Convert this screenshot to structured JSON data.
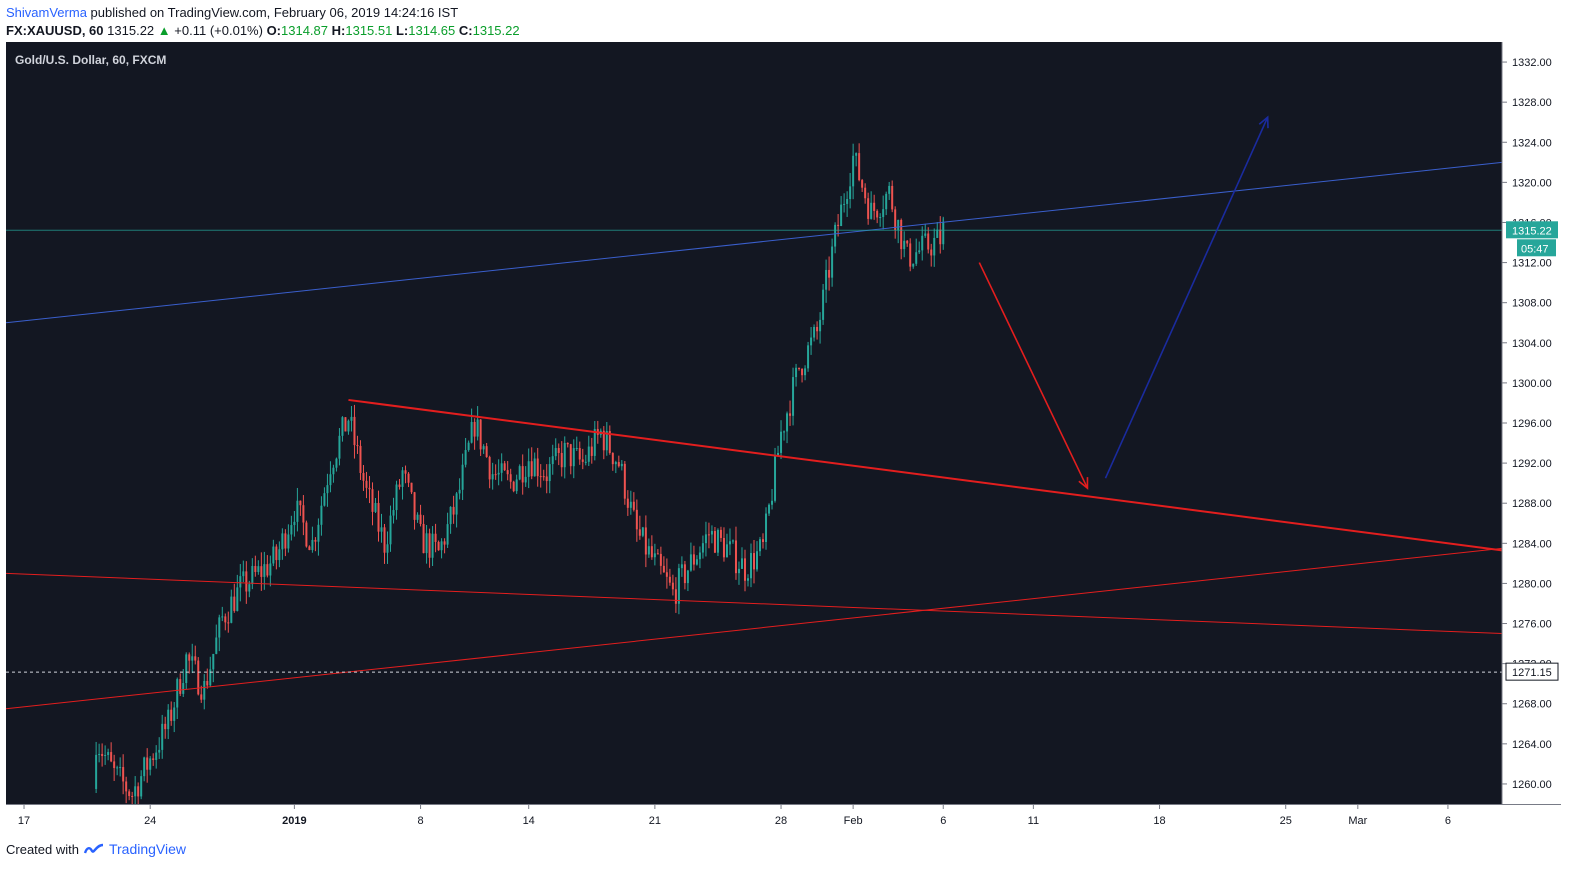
{
  "header": {
    "author": "ShivamVerma",
    "published_text": "published on TradingView.com, February 06, 2019 14:24:16 IST",
    "symbol": "FX:XAUUSD, 60",
    "last": "1315.22",
    "change_arrow": "▲",
    "change": "+0.11 (+0.01%)",
    "open_label": "O:",
    "open": "1314.87",
    "high_label": "H:",
    "high": "1315.51",
    "low_label": "L:",
    "low": "1314.65",
    "close_label": "C:",
    "close": "1315.22"
  },
  "footer": {
    "created_with": "Created with",
    "brand": "TradingView"
  },
  "colors": {
    "background": "#131722",
    "up_candle": "#26a69a",
    "down_candle": "#ef5350",
    "last_price": "#26a69a",
    "trend_blue": "#3a5fcd",
    "trend_red": "#e31e1e",
    "arrow_down": "#e31e1e",
    "arrow_up": "#1a2b9e"
  },
  "chart_data": {
    "type": "candlestick",
    "title": "Gold/U.S. Dollar, 60, FXCM",
    "ylim": [
      1258,
      1334
    ],
    "y_ticks": [
      "1260.00",
      "1264.00",
      "1268.00",
      "1272.00",
      "1276.00",
      "1280.00",
      "1284.00",
      "1288.00",
      "1292.00",
      "1296.00",
      "1300.00",
      "1304.00",
      "1308.00",
      "1312.00",
      "1316.00",
      "1320.00",
      "1324.00",
      "1328.00",
      "1332.00"
    ],
    "x_range": [
      "2018-12-16",
      "2019-03-09"
    ],
    "x_ticks": [
      {
        "date": "2018-12-17",
        "label": "17",
        "bold": false
      },
      {
        "date": "2018-12-24",
        "label": "24",
        "bold": false
      },
      {
        "date": "2019-01-01",
        "label": "2019",
        "bold": true
      },
      {
        "date": "2019-01-08",
        "label": "8",
        "bold": false
      },
      {
        "date": "2019-01-14",
        "label": "14",
        "bold": false
      },
      {
        "date": "2019-01-21",
        "label": "21",
        "bold": false
      },
      {
        "date": "2019-01-28",
        "label": "28",
        "bold": false
      },
      {
        "date": "2019-02-01",
        "label": "Feb",
        "bold": false
      },
      {
        "date": "2019-02-06",
        "label": "6",
        "bold": false
      },
      {
        "date": "2019-02-11",
        "label": "11",
        "bold": false
      },
      {
        "date": "2019-02-18",
        "label": "18",
        "bold": false
      },
      {
        "date": "2019-02-25",
        "label": "25",
        "bold": false
      },
      {
        "date": "2019-03-01",
        "label": "Mar",
        "bold": false
      },
      {
        "date": "2019-03-06",
        "label": "6",
        "bold": false
      }
    ],
    "price_path": [
      [
        "2018-12-21",
        1259.5
      ],
      [
        "2018-12-21",
        1264.5
      ],
      [
        "2018-12-22",
        1261.0
      ],
      [
        "2018-12-23",
        1259.0
      ],
      [
        "2018-12-24",
        1262.5
      ],
      [
        "2018-12-25",
        1266.0
      ],
      [
        "2018-12-26",
        1272.5
      ],
      [
        "2018-12-27",
        1269.5
      ],
      [
        "2018-12-28",
        1276.5
      ],
      [
        "2018-12-29",
        1279.5
      ],
      [
        "2018-12-31",
        1282.5
      ],
      [
        "2019-01-01",
        1287.5
      ],
      [
        "2019-01-02",
        1284.0
      ],
      [
        "2019-01-03",
        1292.0
      ],
      [
        "2019-01-04",
        1296.5
      ],
      [
        "2019-01-05",
        1289.0
      ],
      [
        "2019-01-06",
        1284.0
      ],
      [
        "2019-01-07",
        1291.0
      ],
      [
        "2019-01-08",
        1284.5
      ],
      [
        "2019-01-09",
        1283.0
      ],
      [
        "2019-01-10",
        1288.0
      ],
      [
        "2019-01-11",
        1296.0
      ],
      [
        "2019-01-12",
        1291.0
      ],
      [
        "2019-01-13",
        1290.0
      ],
      [
        "2019-01-14",
        1292.5
      ],
      [
        "2019-01-15",
        1291.0
      ],
      [
        "2019-01-16",
        1293.0
      ],
      [
        "2019-01-17",
        1292.0
      ],
      [
        "2019-01-18",
        1295.0
      ],
      [
        "2019-01-19",
        1292.0
      ],
      [
        "2019-01-20",
        1285.0
      ],
      [
        "2019-01-21",
        1282.0
      ],
      [
        "2019-01-22",
        1279.0
      ],
      [
        "2019-01-23",
        1282.0
      ],
      [
        "2019-01-24",
        1285.0
      ],
      [
        "2019-01-25",
        1283.5
      ],
      [
        "2019-01-26",
        1281.5
      ],
      [
        "2019-01-27",
        1283.5
      ],
      [
        "2019-01-28",
        1295.0
      ],
      [
        "2019-01-29",
        1301.5
      ],
      [
        "2019-01-30",
        1305.0
      ],
      [
        "2019-01-31",
        1314.5
      ],
      [
        "2019-02-01",
        1322.5
      ],
      [
        "2019-02-02",
        1317.0
      ],
      [
        "2019-02-03",
        1319.0
      ],
      [
        "2019-02-04",
        1312.5
      ],
      [
        "2019-02-05",
        1313.5
      ],
      [
        "2019-02-06",
        1314.5
      ],
      [
        "2019-02-06",
        1315.2
      ]
    ],
    "drawings": {
      "blue_trendline": [
        [
          "2018-12-16",
          1306.0
        ],
        [
          "2019-03-09",
          1322.0
        ]
      ],
      "red_triangle_top": [
        [
          "2019-01-04",
          1298.3
        ],
        [
          "2019-03-09",
          1283.3
        ]
      ],
      "red_lower_rising": [
        [
          "2018-12-16",
          1267.5
        ],
        [
          "2019-03-09",
          1283.5
        ]
      ],
      "red_lower_falling": [
        [
          "2018-12-16",
          1281.0
        ],
        [
          "2019-03-09",
          1275.0
        ]
      ],
      "down_arrow": [
        [
          "2019-02-08",
          1312.0
        ],
        [
          "2019-02-14",
          1289.5
        ]
      ],
      "up_arrow": [
        [
          "2019-02-15",
          1290.5
        ],
        [
          "2019-02-24",
          1326.5
        ]
      ]
    },
    "last_price": 1315.22,
    "last_price_label": "1315.22",
    "countdown_label": "05:47",
    "horizontal_level": 1271.15,
    "horizontal_level_label": "1271.15",
    "grid": false
  }
}
